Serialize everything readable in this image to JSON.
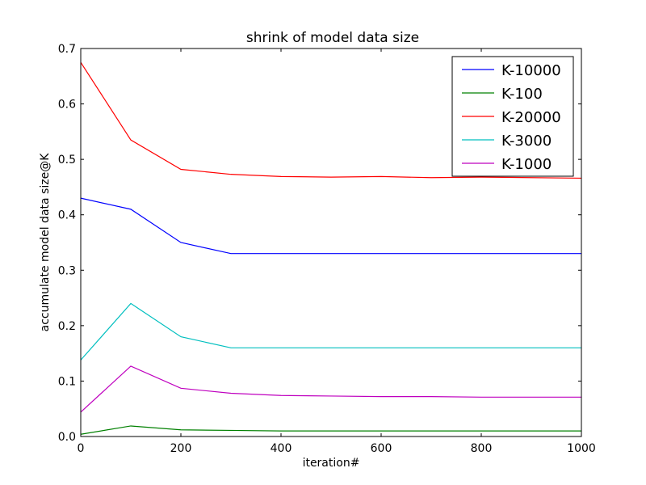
{
  "chart_data": {
    "type": "line",
    "title": "shrink of model data size",
    "xlabel": "iteration#",
    "ylabel": "accumulate model data size@K",
    "xlim": [
      0,
      1000
    ],
    "ylim": [
      0.0,
      0.7
    ],
    "xticks": [
      0,
      200,
      400,
      600,
      800,
      1000
    ],
    "xtick_labels": [
      "0",
      "200",
      "400",
      "600",
      "800",
      "1000"
    ],
    "yticks": [
      0.0,
      0.1,
      0.2,
      0.3,
      0.4,
      0.5,
      0.6,
      0.7
    ],
    "ytick_labels": [
      "0.0",
      "0.1",
      "0.2",
      "0.3",
      "0.4",
      "0.5",
      "0.6",
      "0.7"
    ],
    "grid": false,
    "legend_position": "top-right",
    "x": [
      0,
      100,
      200,
      300,
      400,
      500,
      600,
      700,
      800,
      900,
      1000
    ],
    "series": [
      {
        "name": "K-10000",
        "color": "#0000ff",
        "values": [
          0.43,
          0.41,
          0.35,
          0.33,
          0.33,
          0.33,
          0.33,
          0.33,
          0.33,
          0.33,
          0.33
        ]
      },
      {
        "name": "K-100",
        "color": "#008000",
        "values": [
          0.004,
          0.019,
          0.012,
          0.011,
          0.01,
          0.01,
          0.01,
          0.01,
          0.01,
          0.01,
          0.01
        ]
      },
      {
        "name": "K-20000",
        "color": "#ff0000",
        "values": [
          0.675,
          0.535,
          0.482,
          0.473,
          0.469,
          0.468,
          0.469,
          0.467,
          0.468,
          0.467,
          0.466
        ]
      },
      {
        "name": "K-3000",
        "color": "#00bfbf",
        "values": [
          0.138,
          0.24,
          0.18,
          0.16,
          0.16,
          0.16,
          0.16,
          0.16,
          0.16,
          0.16,
          0.16
        ]
      },
      {
        "name": "K-1000",
        "color": "#bf00bf",
        "values": [
          0.044,
          0.127,
          0.087,
          0.078,
          0.074,
          0.073,
          0.072,
          0.072,
          0.071,
          0.071,
          0.071
        ]
      }
    ]
  }
}
